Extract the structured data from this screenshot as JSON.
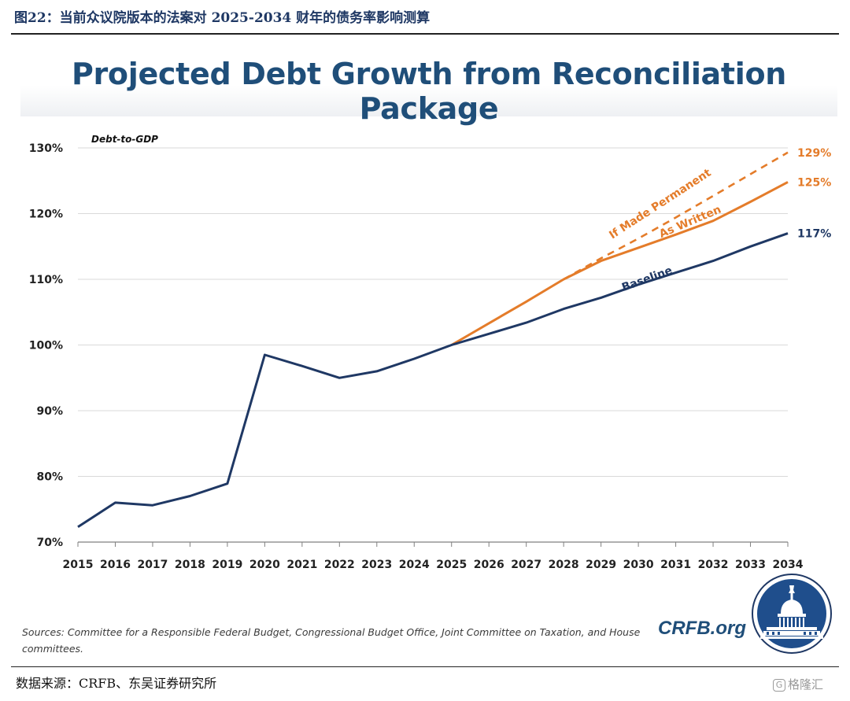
{
  "figure_caption": "图22：当前众议院版本的法案对 2025-2034 财年的债务率影响测算",
  "sources_text": "Sources: Committee for a Responsible Federal Budget, Congressional Budget Office, Joint Committee on Taxation, and House committees.",
  "brand_text": "CRFB.org",
  "data_source": "数据来源：CRFB、东吴证券研究所",
  "watermark_text": "格隆汇",
  "colors": {
    "baseline": "#1f3864",
    "reconciliation": "#e47c2a",
    "title": "#1f4e79"
  },
  "chart_data": {
    "type": "line",
    "title": "Projected Debt Growth from Reconciliation Package",
    "ylabel": "Debt-to-GDP",
    "xlabel": "",
    "ylim": [
      70,
      130
    ],
    "y_ticks": [
      70,
      80,
      90,
      100,
      110,
      120,
      130
    ],
    "y_tick_labels": [
      "70%",
      "80%",
      "90%",
      "100%",
      "110%",
      "120%",
      "130%"
    ],
    "grid": true,
    "categories": [
      "2015",
      "2016",
      "2017",
      "2018",
      "2019",
      "2020",
      "2021",
      "2022",
      "2023",
      "2024",
      "2025",
      "2026",
      "2027",
      "2028",
      "2029",
      "2030",
      "2031",
      "2032",
      "2033",
      "2034"
    ],
    "series": [
      {
        "name": "Baseline",
        "style": "solid",
        "x": [
          "2015",
          "2016",
          "2017",
          "2018",
          "2019",
          "2020",
          "2021",
          "2022",
          "2023",
          "2024",
          "2025",
          "2026",
          "2027",
          "2028",
          "2029",
          "2030",
          "2031",
          "2032",
          "2033",
          "2034"
        ],
        "values": [
          72.3,
          76.0,
          75.6,
          77.0,
          78.9,
          98.5,
          96.8,
          95.0,
          96.0,
          97.9,
          100.0,
          101.7,
          103.4,
          105.5,
          107.2,
          109.2,
          111.0,
          112.8,
          115.0,
          117.0
        ],
        "end_label": "117%"
      },
      {
        "name": "As Written",
        "style": "solid",
        "x": [
          "2025",
          "2026",
          "2027",
          "2028",
          "2029",
          "2030",
          "2031",
          "2032",
          "2033",
          "2034"
        ],
        "values": [
          100.0,
          103.3,
          106.6,
          110.0,
          112.8,
          114.8,
          116.8,
          118.9,
          121.8,
          124.8
        ],
        "end_label": "125%"
      },
      {
        "name": "If Made Permanent",
        "style": "dashed",
        "x": [
          "2028",
          "2029",
          "2030",
          "2031",
          "2032",
          "2033",
          "2034"
        ],
        "values": [
          110.0,
          113.2,
          116.2,
          119.4,
          122.7,
          126.0,
          129.3
        ],
        "end_label": "129%"
      }
    ]
  }
}
